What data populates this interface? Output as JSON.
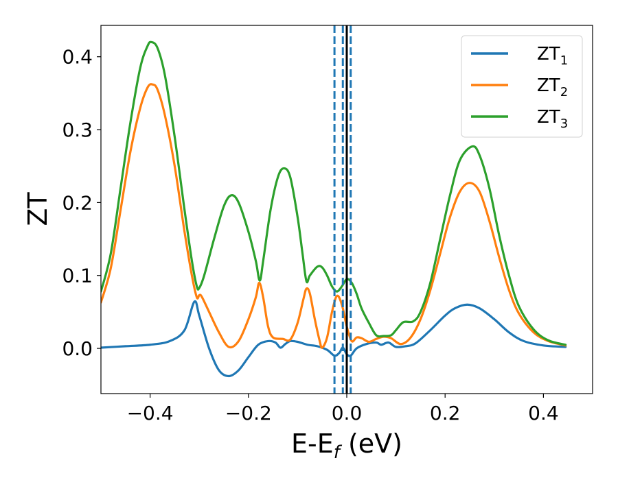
{
  "chart_data": {
    "type": "line",
    "xlabel": "E-E_f (eV)",
    "xlabel_main": "E-E",
    "xlabel_sub": "f",
    "xlabel_tail": " (eV)",
    "ylabel": "ZT",
    "xlim": [
      -0.5,
      0.5
    ],
    "ylim": [
      -0.062,
      0.443
    ],
    "xticks": [
      -0.4,
      -0.2,
      0.0,
      0.2,
      0.4
    ],
    "xtick_labels": [
      "−0.4",
      "−0.2",
      "0.0",
      "0.2",
      "0.4"
    ],
    "yticks": [
      0.0,
      0.1,
      0.2,
      0.3,
      0.4
    ],
    "ytick_labels": [
      "0.0",
      "0.1",
      "0.2",
      "0.3",
      "0.4"
    ],
    "grid": false,
    "legend_position": "top-right",
    "vlines": [
      {
        "x": -0.025,
        "style": "dashed",
        "color": "#1f77b4"
      },
      {
        "x": -0.008,
        "style": "dashed",
        "color": "#1f77b4"
      },
      {
        "x": 0.008,
        "style": "dashed",
        "color": "#1f77b4"
      },
      {
        "x": 0.0,
        "style": "solid",
        "color": "#000000"
      }
    ],
    "series": [
      {
        "name": "ZT1",
        "label_main": "ZT",
        "label_sub": "1",
        "color": "#1f77b4",
        "points": [
          [
            -0.5,
            0.001
          ],
          [
            -0.45,
            0.003
          ],
          [
            -0.4,
            0.005
          ],
          [
            -0.36,
            0.01
          ],
          [
            -0.33,
            0.025
          ],
          [
            -0.31,
            0.064
          ],
          [
            -0.3,
            0.045
          ],
          [
            -0.28,
            0.0
          ],
          [
            -0.26,
            -0.03
          ],
          [
            -0.24,
            -0.038
          ],
          [
            -0.22,
            -0.03
          ],
          [
            -0.2,
            -0.012
          ],
          [
            -0.18,
            0.005
          ],
          [
            -0.16,
            0.01
          ],
          [
            -0.145,
            0.008
          ],
          [
            -0.135,
            0.001
          ],
          [
            -0.125,
            0.006
          ],
          [
            -0.115,
            0.01
          ],
          [
            -0.1,
            0.009
          ],
          [
            -0.08,
            0.005
          ],
          [
            -0.06,
            0.003
          ],
          [
            -0.04,
            -0.002
          ],
          [
            -0.025,
            -0.01
          ],
          [
            -0.015,
            -0.006
          ],
          [
            -0.008,
            0.001
          ],
          [
            0.0,
            -0.008
          ],
          [
            0.008,
            -0.01
          ],
          [
            0.02,
            0.0
          ],
          [
            0.04,
            0.006
          ],
          [
            0.06,
            0.008
          ],
          [
            0.07,
            0.005
          ],
          [
            0.085,
            0.008
          ],
          [
            0.1,
            0.002
          ],
          [
            0.12,
            0.003
          ],
          [
            0.14,
            0.007
          ],
          [
            0.17,
            0.025
          ],
          [
            0.2,
            0.045
          ],
          [
            0.22,
            0.055
          ],
          [
            0.245,
            0.06
          ],
          [
            0.27,
            0.055
          ],
          [
            0.3,
            0.04
          ],
          [
            0.33,
            0.022
          ],
          [
            0.36,
            0.01
          ],
          [
            0.4,
            0.004
          ],
          [
            0.445,
            0.002
          ]
        ]
      },
      {
        "name": "ZT2",
        "label_main": "ZT",
        "label_sub": "2",
        "color": "#ff7f0e",
        "points": [
          [
            -0.5,
            0.063
          ],
          [
            -0.48,
            0.11
          ],
          [
            -0.46,
            0.19
          ],
          [
            -0.44,
            0.27
          ],
          [
            -0.42,
            0.33
          ],
          [
            -0.405,
            0.358
          ],
          [
            -0.395,
            0.362
          ],
          [
            -0.385,
            0.355
          ],
          [
            -0.37,
            0.32
          ],
          [
            -0.35,
            0.25
          ],
          [
            -0.33,
            0.16
          ],
          [
            -0.315,
            0.1
          ],
          [
            -0.305,
            0.07
          ],
          [
            -0.3,
            0.073
          ],
          [
            -0.295,
            0.071
          ],
          [
            -0.28,
            0.05
          ],
          [
            -0.26,
            0.022
          ],
          [
            -0.24,
            0.002
          ],
          [
            -0.22,
            0.01
          ],
          [
            -0.2,
            0.04
          ],
          [
            -0.185,
            0.07
          ],
          [
            -0.178,
            0.09
          ],
          [
            -0.17,
            0.07
          ],
          [
            -0.16,
            0.03
          ],
          [
            -0.15,
            0.015
          ],
          [
            -0.13,
            0.013
          ],
          [
            -0.115,
            0.012
          ],
          [
            -0.1,
            0.035
          ],
          [
            -0.088,
            0.068
          ],
          [
            -0.082,
            0.082
          ],
          [
            -0.075,
            0.075
          ],
          [
            -0.065,
            0.04
          ],
          [
            -0.055,
            0.01
          ],
          [
            -0.05,
            0.001
          ],
          [
            -0.04,
            0.015
          ],
          [
            -0.03,
            0.05
          ],
          [
            -0.02,
            0.072
          ],
          [
            -0.01,
            0.06
          ],
          [
            0.0,
            0.03
          ],
          [
            0.01,
            0.01
          ],
          [
            0.02,
            0.015
          ],
          [
            0.03,
            0.014
          ],
          [
            0.045,
            0.009
          ],
          [
            0.06,
            0.013
          ],
          [
            0.075,
            0.016
          ],
          [
            0.09,
            0.014
          ],
          [
            0.11,
            0.006
          ],
          [
            0.13,
            0.015
          ],
          [
            0.15,
            0.04
          ],
          [
            0.17,
            0.08
          ],
          [
            0.19,
            0.13
          ],
          [
            0.21,
            0.18
          ],
          [
            0.23,
            0.215
          ],
          [
            0.25,
            0.227
          ],
          [
            0.27,
            0.215
          ],
          [
            0.29,
            0.175
          ],
          [
            0.31,
            0.125
          ],
          [
            0.33,
            0.08
          ],
          [
            0.35,
            0.048
          ],
          [
            0.38,
            0.022
          ],
          [
            0.41,
            0.01
          ],
          [
            0.445,
            0.004
          ]
        ]
      },
      {
        "name": "ZT3",
        "label_main": "ZT",
        "label_sub": "3",
        "color": "#2ca02c",
        "points": [
          [
            -0.5,
            0.078
          ],
          [
            -0.48,
            0.13
          ],
          [
            -0.46,
            0.22
          ],
          [
            -0.44,
            0.31
          ],
          [
            -0.42,
            0.385
          ],
          [
            -0.405,
            0.415
          ],
          [
            -0.397,
            0.42
          ],
          [
            -0.385,
            0.412
          ],
          [
            -0.37,
            0.375
          ],
          [
            -0.35,
            0.29
          ],
          [
            -0.33,
            0.19
          ],
          [
            -0.315,
            0.12
          ],
          [
            -0.305,
            0.085
          ],
          [
            -0.3,
            0.083
          ],
          [
            -0.29,
            0.1
          ],
          [
            -0.27,
            0.15
          ],
          [
            -0.25,
            0.195
          ],
          [
            -0.235,
            0.21
          ],
          [
            -0.22,
            0.2
          ],
          [
            -0.2,
            0.16
          ],
          [
            -0.185,
            0.12
          ],
          [
            -0.177,
            0.093
          ],
          [
            -0.17,
            0.12
          ],
          [
            -0.155,
            0.19
          ],
          [
            -0.14,
            0.235
          ],
          [
            -0.128,
            0.247
          ],
          [
            -0.115,
            0.235
          ],
          [
            -0.1,
            0.18
          ],
          [
            -0.09,
            0.13
          ],
          [
            -0.082,
            0.092
          ],
          [
            -0.075,
            0.1
          ],
          [
            -0.06,
            0.112
          ],
          [
            -0.05,
            0.111
          ],
          [
            -0.04,
            0.1
          ],
          [
            -0.03,
            0.085
          ],
          [
            -0.02,
            0.078
          ],
          [
            -0.01,
            0.085
          ],
          [
            0.0,
            0.095
          ],
          [
            0.01,
            0.09
          ],
          [
            0.02,
            0.075
          ],
          [
            0.03,
            0.055
          ],
          [
            0.045,
            0.035
          ],
          [
            0.06,
            0.018
          ],
          [
            0.075,
            0.017
          ],
          [
            0.09,
            0.018
          ],
          [
            0.1,
            0.025
          ],
          [
            0.115,
            0.036
          ],
          [
            0.135,
            0.037
          ],
          [
            0.15,
            0.05
          ],
          [
            0.17,
            0.09
          ],
          [
            0.19,
            0.15
          ],
          [
            0.21,
            0.21
          ],
          [
            0.23,
            0.258
          ],
          [
            0.255,
            0.277
          ],
          [
            0.27,
            0.265
          ],
          [
            0.29,
            0.22
          ],
          [
            0.31,
            0.155
          ],
          [
            0.33,
            0.1
          ],
          [
            0.35,
            0.058
          ],
          [
            0.38,
            0.026
          ],
          [
            0.41,
            0.011
          ],
          [
            0.445,
            0.005
          ]
        ]
      }
    ]
  }
}
